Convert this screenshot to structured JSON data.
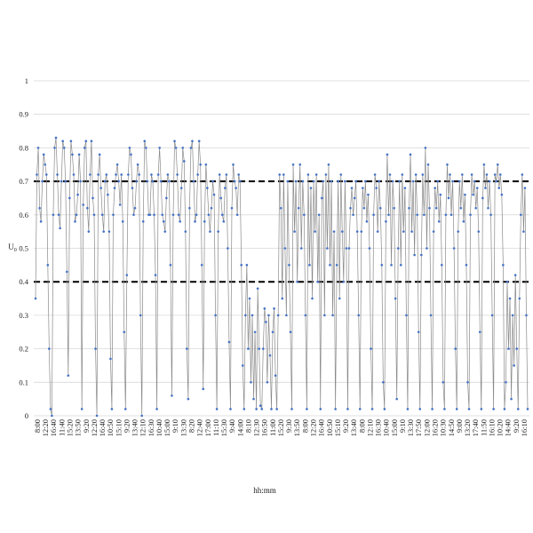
{
  "chart_data": {
    "type": "line",
    "xlabel": "hh:mm",
    "ylabel": "U",
    "ylabel_sub": "0",
    "ylim": [
      0,
      1
    ],
    "yticks": [
      0,
      0.1,
      0.2,
      0.3,
      0.4,
      0.5,
      0.6,
      0.7,
      0.8,
      0.9,
      1
    ],
    "ytick_labels": [
      "0",
      "0.1",
      "0.2",
      "0.3",
      "0.4",
      "0.5",
      "0.6",
      "0.7",
      "0.8",
      "0.9",
      "1"
    ],
    "grid": true,
    "legend": "none",
    "thresholds": [
      0.7,
      0.4
    ],
    "xtick_labels": [
      "8:00",
      "12:20",
      "16:40",
      "11:40",
      "15:20",
      "13:50",
      "9:20",
      "12:20",
      "16:40",
      "10:50",
      "15:10",
      "9:20",
      "13:40",
      "12:10",
      "16:30",
      "10:40",
      "15:00",
      "9:10",
      "13:30",
      "8:20",
      "12:40",
      "17:00",
      "11:10",
      "15:30",
      "9:40",
      "14:00",
      "8:10",
      "12:30",
      "16:50",
      "11:00",
      "15:20",
      "9:30",
      "13:50",
      "8:00",
      "12:20",
      "16:40",
      "10:50",
      "15:10",
      "9:20",
      "13:40",
      "8:00",
      "12:10",
      "16:30",
      "10:40",
      "15:00",
      "9:10",
      "13:30",
      "17:50",
      "12:00",
      "16:20",
      "10:30",
      "14:50",
      "9:00",
      "13:20",
      "17:40",
      "11:50",
      "16:10",
      "10:20",
      "14:40",
      "9:20",
      "16:10"
    ],
    "colors": {
      "line": "#8a8a8a",
      "marker": "#4472c4",
      "threshold": "#000000",
      "grid": "#d9d9d9"
    },
    "segments": [
      [
        0.35,
        0.72,
        0.8,
        0.62,
        0.58,
        0.7,
        0.78,
        0.75,
        0.72,
        0.45,
        0.2,
        0.02,
        0
      ],
      [
        0.6,
        0.8,
        0.83,
        0.72,
        0.6,
        0.56,
        0.7,
        0.82,
        0.8,
        0.7,
        0.43,
        0.12
      ],
      [
        0.65,
        0.82,
        0.78,
        0.72,
        0.58,
        0.6,
        0.66,
        0.78,
        0.7
      ],
      [
        0.02,
        0.63,
        0.8,
        0.82,
        0.62,
        0.55,
        0.72,
        0.82,
        0.65,
        0.6,
        0.2,
        0
      ],
      [
        0.72,
        0.78,
        0.68,
        0.6,
        0.55,
        0.7,
        0.72,
        0.66,
        0.55,
        0.17,
        0.02
      ],
      [
        0.6,
        0.68,
        0.72,
        0.75,
        0.7,
        0.63,
        0.72,
        0.58,
        0.25,
        0.02
      ],
      [
        0.42,
        0.72,
        0.8,
        0.78,
        0.68,
        0.6,
        0.62,
        0.7,
        0.75,
        0.72,
        0.3,
        0
      ],
      [
        0.58,
        0.82,
        0.8,
        0.7,
        0.6,
        0.6,
        0.72,
        0.7,
        0.6,
        0.42,
        0.02
      ],
      [
        0.72,
        0.8,
        0.7,
        0.6,
        0.58,
        0.55,
        0.65,
        0.72,
        0.7,
        0.45,
        0.06
      ],
      [
        0.6,
        0.82,
        0.8,
        0.72,
        0.6,
        0.58,
        0.68,
        0.8,
        0.76,
        0.55,
        0.2,
        0.05
      ],
      [
        0.62,
        0.8,
        0.82,
        0.7,
        0.58,
        0.6,
        0.72,
        0.82,
        0.75,
        0.45,
        0.08
      ],
      [
        0.58,
        0.75,
        0.68,
        0.6,
        0.55,
        0.62,
        0.7,
        0.66,
        0.3,
        0.02
      ],
      [
        0.55,
        0.72,
        0.65,
        0.6,
        0.58,
        0.68,
        0.72,
        0.5,
        0.22,
        0.02
      ],
      [
        0.62,
        0.75,
        0.7,
        0.68,
        0.6,
        0.72,
        0.7,
        0.45,
        0.15,
        0.02
      ],
      [
        0.3,
        0.45,
        0.2,
        0.35,
        0.1,
        0.3,
        0.05,
        0.25,
        0.02,
        0.38,
        0.2,
        0.03
      ],
      [
        0.02,
        0.2,
        0.32,
        0.28,
        0.1,
        0.3,
        0.18,
        0.02,
        0.25,
        0.32,
        0.12,
        0.02
      ],
      [
        0.3,
        0.72,
        0.62,
        0.35,
        0.72,
        0.5,
        0.3,
        0.7,
        0.45,
        0.25,
        0.02
      ],
      [
        0.75,
        0.55,
        0.7,
        0.4,
        0.62,
        0.75,
        0.5,
        0.7,
        0.6,
        0.3,
        0.02
      ],
      [
        0.72,
        0.45,
        0.68,
        0.35,
        0.7,
        0.55,
        0.72,
        0.4,
        0.6,
        0.02
      ],
      [
        0.65,
        0.7,
        0.3,
        0.72,
        0.5,
        0.75,
        0.45,
        0.7,
        0.3,
        0.55,
        0.02
      ],
      [
        0.45,
        0.7,
        0.35,
        0.72,
        0.55,
        0.4,
        0.7,
        0.5,
        0.02
      ],
      [
        0.5,
        0.62,
        0.68,
        0.6,
        0.65,
        0.7,
        0.55,
        0.3,
        0.02
      ],
      [
        0.55,
        0.68,
        0.62,
        0.7,
        0.58,
        0.66,
        0.5,
        0.2,
        0.02
      ],
      [
        0.6,
        0.72,
        0.68,
        0.55,
        0.7,
        0.62,
        0.45,
        0.1,
        0.02
      ],
      [
        0.58,
        0.78,
        0.6,
        0.72,
        0.45,
        0.7,
        0.62,
        0.35,
        0.05
      ],
      [
        0.5,
        0.7,
        0.45,
        0.72,
        0.55,
        0.68,
        0.3,
        0.02
      ],
      [
        0.62,
        0.78,
        0.55,
        0.7,
        0.48,
        0.72,
        0.6,
        0.25,
        0.02
      ],
      [
        0.48,
        0.72,
        0.6,
        0.8,
        0.5,
        0.75,
        0.62,
        0.3,
        0.02
      ],
      [
        0.55,
        0.68,
        0.62,
        0.7,
        0.58,
        0.66,
        0.45,
        0.1,
        0.02
      ],
      [
        0.6,
        0.75,
        0.65,
        0.72,
        0.6,
        0.7,
        0.5,
        0.2,
        0.02
      ],
      [
        0.55,
        0.7,
        0.62,
        0.72,
        0.58,
        0.66,
        0.45,
        0.1,
        0.02
      ],
      [
        0.6,
        0.72,
        0.66,
        0.7,
        0.62,
        0.68,
        0.55,
        0.25,
        0.02
      ],
      [
        0.65,
        0.75,
        0.68,
        0.72,
        0.62,
        0.7,
        0.6,
        0.3,
        0.02
      ],
      [
        0.72,
        0.7,
        0.75,
        0.68,
        0.72,
        0.66,
        0.45,
        0.02
      ],
      [
        0.1,
        0.4,
        0.2,
        0.35,
        0.05,
        0.3,
        0.15,
        0.42,
        0.2,
        0.02
      ],
      [
        0.35,
        0.6,
        0.72,
        0.55,
        0.68,
        0.3,
        0.02
      ]
    ]
  }
}
